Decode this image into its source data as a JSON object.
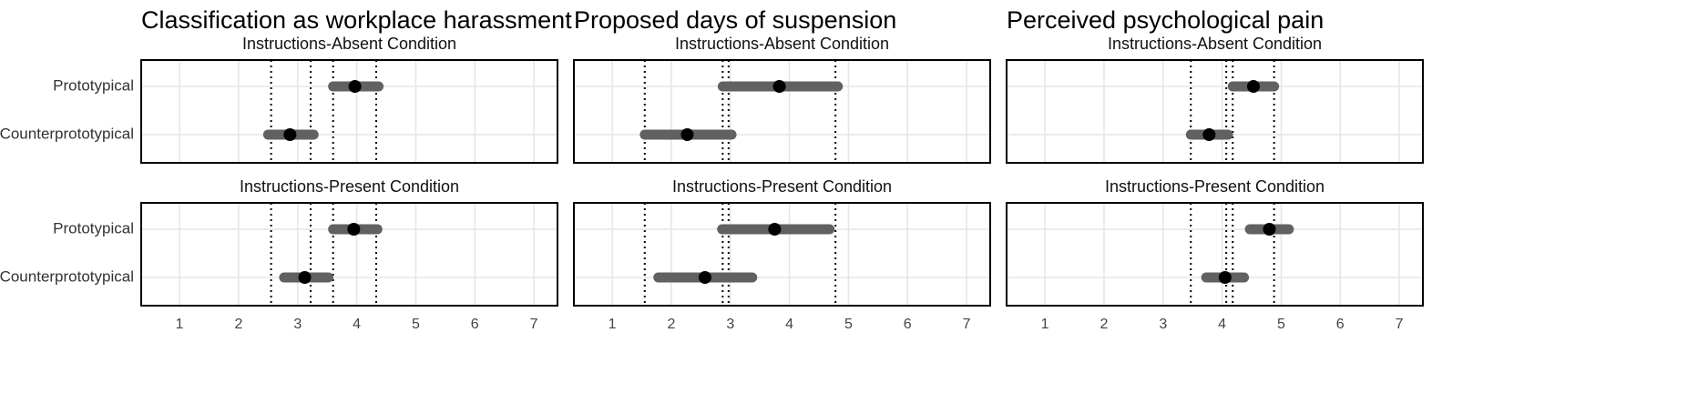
{
  "chart_data": {
    "type": "forest",
    "x_ticks": [
      1,
      2,
      3,
      4,
      5,
      6,
      7
    ],
    "xlim": [
      0.35,
      7.4
    ],
    "categories": [
      "Prototypical",
      "Counterprototypical"
    ],
    "colors": {
      "interval": "#616161",
      "point": "#000000",
      "grid": "#e5e5e5",
      "reference": "#000000",
      "frame": "#000000"
    },
    "grid": true,
    "panels": [
      {
        "title": "Classification as workplace harassment",
        "reference_lines": [
          2.55,
          3.22,
          3.6,
          4.33
        ],
        "rows": [
          {
            "condition": "Instructions-Absent Condition",
            "points": [
              {
                "label": "Prototypical",
                "estimate": 3.97,
                "low": 3.6,
                "high": 4.37
              },
              {
                "label": "Counterprototypical",
                "estimate": 2.87,
                "low": 2.5,
                "high": 3.27
              }
            ]
          },
          {
            "condition": "Instructions-Present Condition",
            "points": [
              {
                "label": "Prototypical",
                "estimate": 3.95,
                "low": 3.6,
                "high": 4.35
              },
              {
                "label": "Counterprototypical",
                "estimate": 3.12,
                "low": 2.77,
                "high": 3.52
              }
            ]
          }
        ]
      },
      {
        "title": "Proposed days of suspension",
        "reference_lines": [
          1.55,
          2.87,
          2.97,
          4.78
        ],
        "rows": [
          {
            "condition": "Instructions-Absent Condition",
            "points": [
              {
                "label": "Prototypical",
                "estimate": 3.83,
                "low": 2.87,
                "high": 4.82
              },
              {
                "label": "Counterprototypical",
                "estimate": 2.27,
                "low": 1.55,
                "high": 3.02
              }
            ]
          },
          {
            "condition": "Instructions-Present Condition",
            "points": [
              {
                "label": "Prototypical",
                "estimate": 3.75,
                "low": 2.86,
                "high": 4.68
              },
              {
                "label": "Counterprototypical",
                "estimate": 2.57,
                "low": 1.78,
                "high": 3.37
              }
            ]
          }
        ]
      },
      {
        "title": "Perceived psychological pain",
        "reference_lines": [
          3.47,
          4.07,
          4.18,
          4.88
        ],
        "rows": [
          {
            "condition": "Instructions-Absent Condition",
            "points": [
              {
                "label": "Prototypical",
                "estimate": 4.53,
                "low": 4.18,
                "high": 4.88
              },
              {
                "label": "Counterprototypical",
                "estimate": 3.78,
                "low": 3.47,
                "high": 4.1
              }
            ]
          },
          {
            "condition": "Instructions-Present Condition",
            "points": [
              {
                "label": "Prototypical",
                "estimate": 4.8,
                "low": 4.47,
                "high": 5.13
              },
              {
                "label": "Counterprototypical",
                "estimate": 4.05,
                "low": 3.73,
                "high": 4.37
              }
            ]
          }
        ]
      }
    ]
  }
}
